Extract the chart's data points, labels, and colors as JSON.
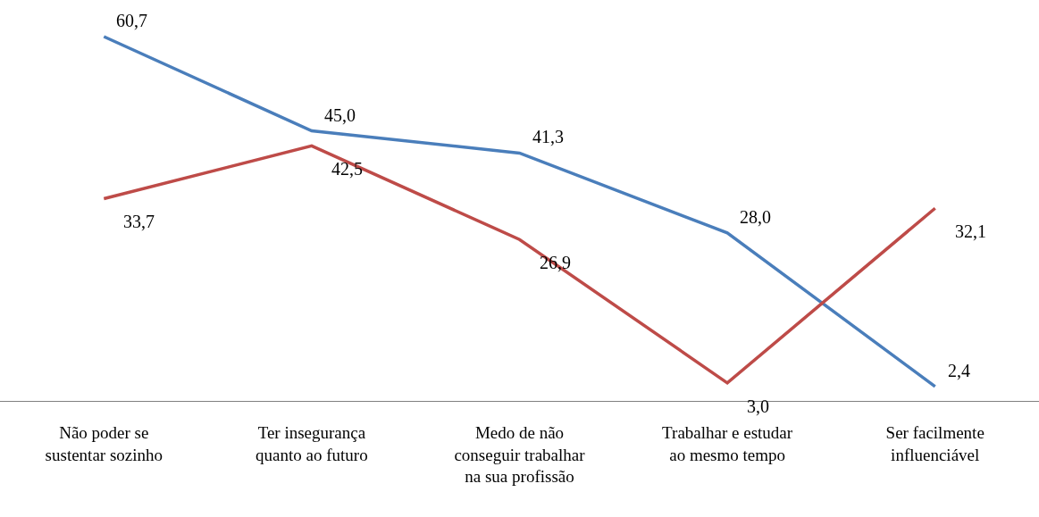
{
  "chart_data": {
    "type": "line",
    "categories": [
      "Não poder se\nsustentar sozinho",
      "Ter insegurança\nquanto ao futuro",
      "Medo de não\nconseguir trabalhar\nna sua profissão",
      "Trabalhar e estudar\nao mesmo tempo",
      "Ser facilmente\ninfluenciável"
    ],
    "series": [
      {
        "color": "#4a7ebb",
        "values": [
          60.7,
          45.0,
          41.3,
          28.0,
          2.4
        ],
        "value_labels": [
          "60,7",
          "45,0",
          "41,3",
          "28,0",
          "2,4"
        ]
      },
      {
        "color": "#be4b48",
        "values": [
          33.7,
          42.5,
          26.9,
          3.0,
          32.1
        ],
        "value_labels": [
          "33,7",
          "42,5",
          "26,9",
          "3,0",
          "32,1"
        ]
      }
    ],
    "legend": false,
    "marker": "none",
    "line_style": "solid"
  }
}
